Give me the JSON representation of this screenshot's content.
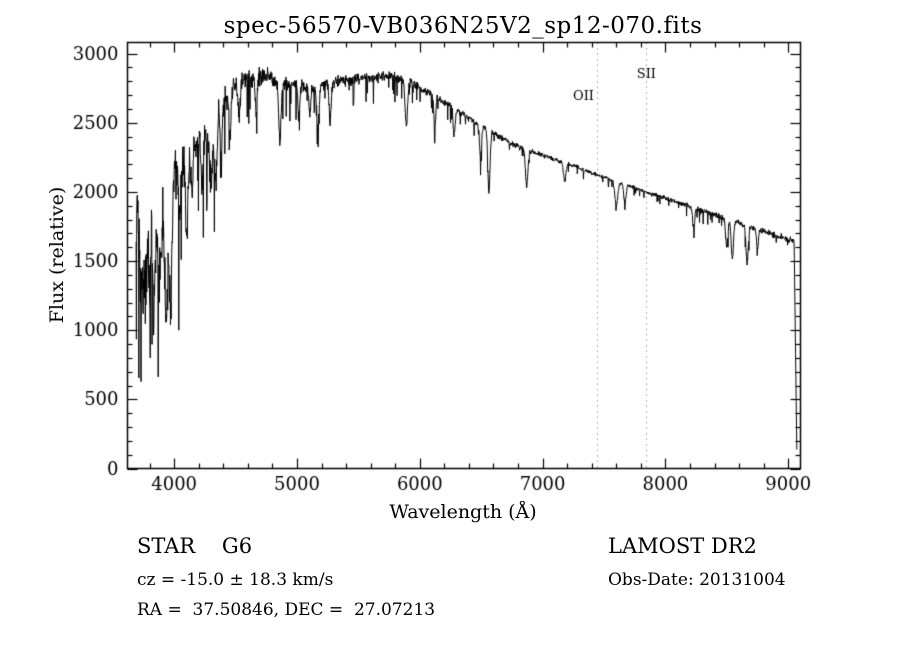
{
  "title": "spec-56570-VB036N25V2_sp12-070.fits",
  "annotations": {
    "object_type": "STAR    G6",
    "survey": "LAMOST DR2",
    "cz": "cz = -15.0 ± 18.3 km/s",
    "obs_date": "Obs-Date: 20131004",
    "coords": "RA =  37.50846, DEC =  27.07213"
  },
  "chart_data": {
    "type": "line",
    "title": "spec-56570-VB036N25V2_sp12-070.fits",
    "xlabel": "Wavelength (Å)",
    "ylabel": "Flux (relative)",
    "series_name": "flux",
    "xlim": [
      3620,
      9100
    ],
    "ylim": [
      0,
      3080
    ],
    "x_ticks": [
      4000,
      5000,
      6000,
      7000,
      8000,
      9000
    ],
    "y_ticks": [
      0,
      500,
      1000,
      1500,
      2000,
      2500,
      3000
    ],
    "x_minor_step": 200,
    "y_minor_step": 100,
    "grid": false,
    "legend": "none",
    "line_color": "#000000",
    "axis_color": "#000000",
    "reference_line_color": "#9a9a9a",
    "reference_lines": [
      {
        "label": "OII",
        "wavelength": 7443
      },
      {
        "label": "SII",
        "wavelength": 7845
      }
    ],
    "wavelength_start": 3690,
    "wavelength_end": 9072,
    "cutoff_start": 9048,
    "sample_step": 2.5,
    "spike_probability": 0.06,
    "continuum": [
      [
        3690,
        1850
      ],
      [
        3780,
        1800
      ],
      [
        3860,
        1850
      ],
      [
        3940,
        1950
      ],
      [
        4000,
        2120
      ],
      [
        4080,
        2200
      ],
      [
        4160,
        2300
      ],
      [
        4250,
        2420
      ],
      [
        4350,
        2600
      ],
      [
        4450,
        2720
      ],
      [
        4550,
        2800
      ],
      [
        4650,
        2840
      ],
      [
        4750,
        2830
      ],
      [
        4850,
        2800
      ],
      [
        4950,
        2780
      ],
      [
        5050,
        2760
      ],
      [
        5150,
        2760
      ],
      [
        5250,
        2780
      ],
      [
        5350,
        2800
      ],
      [
        5450,
        2810
      ],
      [
        5550,
        2820
      ],
      [
        5650,
        2830
      ],
      [
        5750,
        2840
      ],
      [
        5850,
        2820
      ],
      [
        5950,
        2780
      ],
      [
        6050,
        2730
      ],
      [
        6150,
        2680
      ],
      [
        6250,
        2620
      ],
      [
        6350,
        2560
      ],
      [
        6450,
        2500
      ],
      [
        6550,
        2450
      ],
      [
        6650,
        2400
      ],
      [
        6750,
        2350
      ],
      [
        6850,
        2310
      ],
      [
        6950,
        2280
      ],
      [
        7050,
        2250
      ],
      [
        7150,
        2220
      ],
      [
        7250,
        2190
      ],
      [
        7350,
        2150
      ],
      [
        7450,
        2120
      ],
      [
        7550,
        2090
      ],
      [
        7650,
        2060
      ],
      [
        7750,
        2030
      ],
      [
        7850,
        2000
      ],
      [
        7950,
        1970
      ],
      [
        8050,
        1940
      ],
      [
        8150,
        1910
      ],
      [
        8250,
        1880
      ],
      [
        8350,
        1850
      ],
      [
        8450,
        1820
      ],
      [
        8550,
        1790
      ],
      [
        8650,
        1760
      ],
      [
        8750,
        1730
      ],
      [
        8850,
        1700
      ],
      [
        8950,
        1670
      ],
      [
        9050,
        1650
      ]
    ],
    "noise_amplitude": [
      [
        3690,
        320
      ],
      [
        3850,
        300
      ],
      [
        4000,
        240
      ],
      [
        4200,
        170
      ],
      [
        4400,
        120
      ],
      [
        4600,
        90
      ],
      [
        4800,
        75
      ],
      [
        5000,
        60
      ],
      [
        5300,
        50
      ],
      [
        5600,
        45
      ],
      [
        5900,
        40
      ],
      [
        6200,
        33
      ],
      [
        6500,
        28
      ],
      [
        6800,
        24
      ],
      [
        7100,
        20
      ],
      [
        7500,
        17
      ],
      [
        7900,
        18
      ],
      [
        8300,
        22
      ],
      [
        8700,
        26
      ],
      [
        9050,
        30
      ]
    ],
    "absorption_lines": [
      {
        "wavelength": 3727,
        "depth": 500,
        "width": 10
      },
      {
        "wavelength": 3750,
        "depth": 450,
        "width": 8
      },
      {
        "wavelength": 3770,
        "depth": 500,
        "width": 8
      },
      {
        "wavelength": 3798,
        "depth": 550,
        "width": 8
      },
      {
        "wavelength": 3835,
        "depth": 650,
        "width": 10
      },
      {
        "wavelength": 3870,
        "depth": 450,
        "width": 8
      },
      {
        "wavelength": 3889,
        "depth": 500,
        "width": 8
      },
      {
        "wavelength": 3935,
        "depth": 850,
        "width": 12
      },
      {
        "wavelength": 3970,
        "depth": 800,
        "width": 12
      },
      {
        "wavelength": 4046,
        "depth": 350,
        "width": 8
      },
      {
        "wavelength": 4102,
        "depth": 520,
        "width": 10
      },
      {
        "wavelength": 4144,
        "depth": 300,
        "width": 8
      },
      {
        "wavelength": 4227,
        "depth": 380,
        "width": 8
      },
      {
        "wavelength": 4300,
        "depth": 450,
        "width": 14
      },
      {
        "wavelength": 4340,
        "depth": 500,
        "width": 10
      },
      {
        "wavelength": 4383,
        "depth": 380,
        "width": 8
      },
      {
        "wavelength": 4455,
        "depth": 280,
        "width": 8
      },
      {
        "wavelength": 4530,
        "depth": 250,
        "width": 8
      },
      {
        "wavelength": 4668,
        "depth": 250,
        "width": 8
      },
      {
        "wavelength": 4861,
        "depth": 430,
        "width": 10
      },
      {
        "wavelength": 5015,
        "depth": 220,
        "width": 8
      },
      {
        "wavelength": 5105,
        "depth": 200,
        "width": 8
      },
      {
        "wavelength": 5170,
        "depth": 300,
        "width": 10
      },
      {
        "wavelength": 5270,
        "depth": 280,
        "width": 8
      },
      {
        "wavelength": 5890,
        "depth": 320,
        "width": 10
      },
      {
        "wavelength": 6122,
        "depth": 220,
        "width": 8
      },
      {
        "wavelength": 6280,
        "depth": 200,
        "width": 8
      },
      {
        "wavelength": 6495,
        "depth": 230,
        "width": 8
      },
      {
        "wavelength": 6563,
        "depth": 450,
        "width": 9
      },
      {
        "wavelength": 6870,
        "depth": 260,
        "width": 10
      },
      {
        "wavelength": 7180,
        "depth": 140,
        "width": 10
      },
      {
        "wavelength": 7600,
        "depth": 170,
        "width": 12
      },
      {
        "wavelength": 7670,
        "depth": 140,
        "width": 9
      },
      {
        "wavelength": 8230,
        "depth": 140,
        "width": 9
      },
      {
        "wavelength": 8500,
        "depth": 200,
        "width": 9
      },
      {
        "wavelength": 8545,
        "depth": 280,
        "width": 9
      },
      {
        "wavelength": 8665,
        "depth": 270,
        "width": 9
      },
      {
        "wavelength": 8750,
        "depth": 140,
        "width": 8
      }
    ]
  }
}
